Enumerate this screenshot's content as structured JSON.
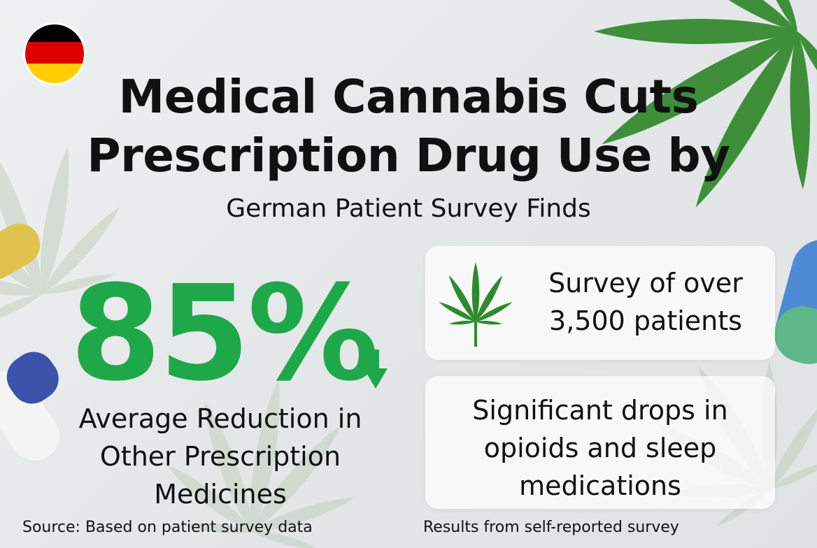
{
  "title_line1": "Medical Cannabis Cuts",
  "title_line2": "Prescription Drug Use by",
  "subtitle": "German Patient Survey Finds",
  "stat": {
    "value": "85%",
    "caption": [
      "Average Reduction in",
      "Other Prescription",
      "Medicines"
    ]
  },
  "cards": [
    {
      "lines": [
        "Survey of over",
        "3,500 patients"
      ]
    },
    {
      "lines": [
        "Significant drops in",
        "opioids and sleep",
        "medications"
      ]
    }
  ],
  "footer": {
    "left": "Source: Based on patient survey data",
    "right": "Results from self-reported survey"
  }
}
